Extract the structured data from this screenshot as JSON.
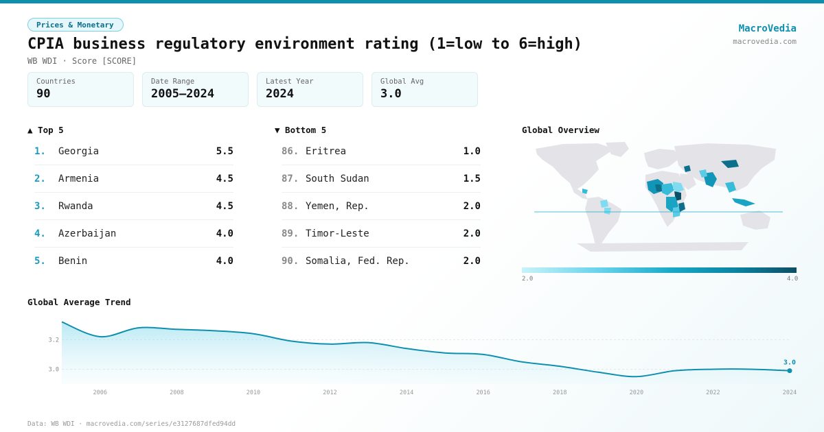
{
  "header": {
    "tag": "Prices & Monetary",
    "title": "CPIA business regulatory environment rating (1=low to 6=high)",
    "subtitle": "WB WDI · Score [SCORE]"
  },
  "brand": {
    "name": "MacroVedia",
    "url": "macrovedia.com"
  },
  "stats": [
    {
      "label": "Countries",
      "value": "90"
    },
    {
      "label": "Date Range",
      "value": "2005–2024"
    },
    {
      "label": "Latest Year",
      "value": "2024"
    },
    {
      "label": "Global Avg",
      "value": "3.0"
    }
  ],
  "top5": {
    "heading": "▲ Top 5",
    "rows": [
      {
        "rank": "1.",
        "name": "Georgia",
        "value": "5.5"
      },
      {
        "rank": "2.",
        "name": "Armenia",
        "value": "4.5"
      },
      {
        "rank": "3.",
        "name": "Rwanda",
        "value": "4.5"
      },
      {
        "rank": "4.",
        "name": "Azerbaijan",
        "value": "4.0"
      },
      {
        "rank": "5.",
        "name": "Benin",
        "value": "4.0"
      }
    ]
  },
  "bottom5": {
    "heading": "▼ Bottom 5",
    "rows": [
      {
        "rank": "86.",
        "name": "Eritrea",
        "value": "1.0"
      },
      {
        "rank": "87.",
        "name": "South Sudan",
        "value": "1.5"
      },
      {
        "rank": "88.",
        "name": "Yemen, Rep.",
        "value": "2.0"
      },
      {
        "rank": "89.",
        "name": "Timor-Leste",
        "value": "2.0"
      },
      {
        "rank": "90.",
        "name": "Somalia, Fed. Rep.",
        "value": "2.0"
      }
    ]
  },
  "map": {
    "heading": "Global Overview",
    "legend_min": "2.0",
    "legend_max": "4.0",
    "colors": {
      "land": "#e4e4e8",
      "low": "#c9f2fa",
      "mid": "#17a8c7",
      "high": "#0e4d63"
    }
  },
  "trend_heading": "Global Average Trend",
  "chart_data": {
    "type": "area",
    "title": "Global Average Trend",
    "x": [
      2005,
      2006,
      2007,
      2008,
      2009,
      2010,
      2011,
      2012,
      2013,
      2014,
      2015,
      2016,
      2017,
      2018,
      2019,
      2020,
      2021,
      2022,
      2023,
      2024
    ],
    "series": [
      {
        "values": [
          3.32,
          3.22,
          3.28,
          3.27,
          3.26,
          3.24,
          3.19,
          3.17,
          3.18,
          3.14,
          3.11,
          3.1,
          3.05,
          3.02,
          2.98,
          2.95,
          2.99,
          3.0,
          3.0,
          2.99
        ]
      }
    ],
    "x_ticks": [
      2006,
      2008,
      2010,
      2012,
      2014,
      2016,
      2018,
      2020,
      2022,
      2024
    ],
    "y_ticks": [
      3.0,
      3.2
    ],
    "ylim": [
      2.9,
      3.35
    ],
    "end_label": "3.0",
    "xlabel": "",
    "ylabel": "",
    "grid": true,
    "color": "#0e8fae"
  },
  "footer": "Data: WB WDI · macrovedia.com/series/e3127687dfed94dd"
}
